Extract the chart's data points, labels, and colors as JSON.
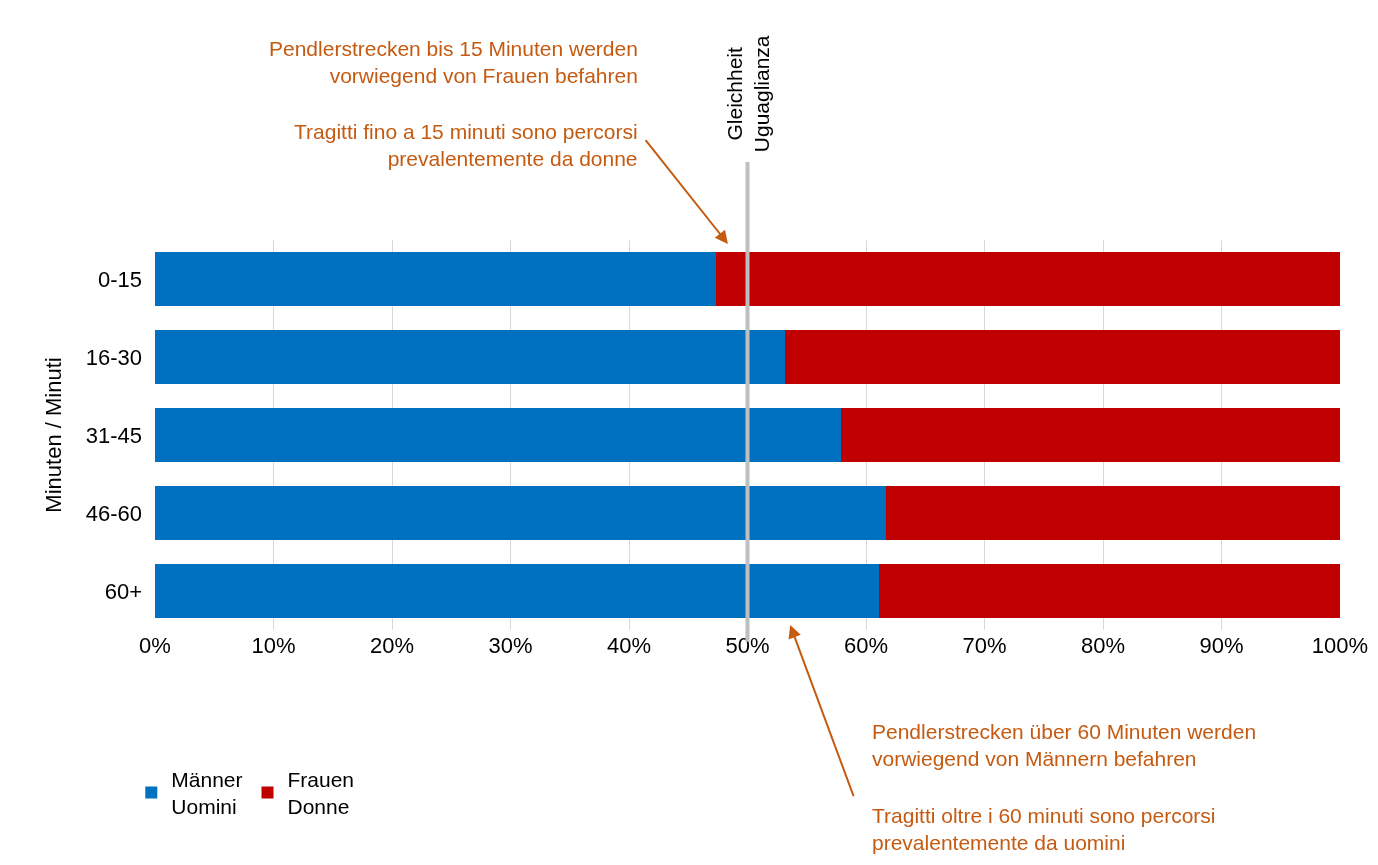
{
  "chart_data": {
    "type": "bar",
    "orientation": "horizontal",
    "stacked": true,
    "categories": [
      "0-15",
      "16-30",
      "31-45",
      "46-60",
      "60+"
    ],
    "series": [
      {
        "name": "Männer\nUomini",
        "color": "#0070c0",
        "values": [
          47.3,
          53.2,
          57.9,
          61.7,
          61.1
        ]
      },
      {
        "name": "Frauen\nDonne",
        "color": "#c00000",
        "values": [
          52.7,
          46.8,
          42.1,
          38.3,
          38.9
        ]
      }
    ],
    "xlim": [
      0,
      100
    ],
    "xticks": [
      {
        "value": 0,
        "label": "0%"
      },
      {
        "value": 10,
        "label": "10%"
      },
      {
        "value": 20,
        "label": "20%"
      },
      {
        "value": 30,
        "label": "30%"
      },
      {
        "value": 40,
        "label": "40%"
      },
      {
        "value": 50,
        "label": "50%"
      },
      {
        "value": 60,
        "label": "60%"
      },
      {
        "value": 70,
        "label": "70%"
      },
      {
        "value": 80,
        "label": "80%"
      },
      {
        "value": 90,
        "label": "90%"
      },
      {
        "value": 100,
        "label": "100%"
      }
    ],
    "ylabel": "Minuten / Minuti",
    "grid": "x",
    "legend": "bottom left",
    "ref_lines": [
      {
        "axis": "x",
        "value": 50,
        "label": "Gleichheit\nUguaglianza",
        "color": "#bfbfbf"
      }
    ],
    "annotations": [
      "Pendlerstrecken bis 15 Minuten werden\nvorwiegend von Frauen befahren",
      "Tragitti fino a 15 minuti sono percorsi\nprevalentemente da donne",
      "Pendlerstrecken über 60 Minuten werden\nvorwiegend von Männern befahren",
      "Tragitti oltre i 60 minuti sono percorsi\nprevalentemente da uomini"
    ]
  }
}
